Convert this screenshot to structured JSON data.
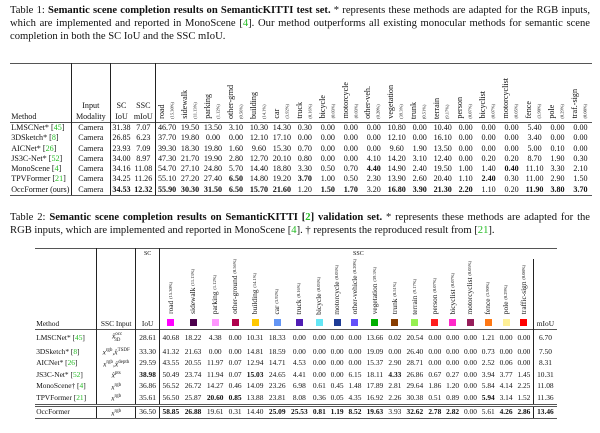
{
  "table1": {
    "caption_label": "Table 1: ",
    "caption_bold": "Semantic scene completion results on SemanticKITTI test set.",
    "caption_text_a": " * represents these methods are adapted for the RGB inputs, which are implemented and reported in MonoScene [",
    "caption_ref": "4",
    "caption_text_b": "]. Our method outperforms all existing monocular methods for semantic scene completion in both the SC IoU and the SSC mIoU.",
    "headers": {
      "method": "Method",
      "input": "Input Modality",
      "sc": "SC IoU",
      "ssc": "SSC mIoU"
    },
    "classes": [
      {
        "name": "road",
        "freq": "(15.30%)"
      },
      {
        "name": "sidewalk",
        "freq": "(11.13%)"
      },
      {
        "name": "parking",
        "freq": "(1.12%)"
      },
      {
        "name": "other-grnd",
        "freq": "(0.56%)"
      },
      {
        "name": "building",
        "freq": "(14.1%)"
      },
      {
        "name": "car",
        "freq": "(3.92%)"
      },
      {
        "name": "truck",
        "freq": "(0.16%)"
      },
      {
        "name": "bicycle",
        "freq": "(0.03%)"
      },
      {
        "name": "motorcycle",
        "freq": "(0.03%)"
      },
      {
        "name": "other-veh.",
        "freq": "(0.20%)"
      },
      {
        "name": "vegetation",
        "freq": "(39.3%)"
      },
      {
        "name": "trunk",
        "freq": "(0.51%)"
      },
      {
        "name": "terrain",
        "freq": "(9.17%)"
      },
      {
        "name": "person",
        "freq": "(0.07%)"
      },
      {
        "name": "bicyclist",
        "freq": "(0.07%)"
      },
      {
        "name": "motorcyclist",
        "freq": "(0.05%)"
      },
      {
        "name": "fence",
        "freq": "(3.90%)"
      },
      {
        "name": "pole",
        "freq": "(0.29%)"
      },
      {
        "name": "traf.-sign",
        "freq": "(0.08%)"
      }
    ],
    "rows": [
      {
        "method": "LMSCNet*",
        "ref": "45",
        "input": "Camera",
        "sc": "31.38",
        "ssc": "7.07",
        "values": [
          "46.70",
          "19.50",
          "13.50",
          "3.10",
          "10.30",
          "14.30",
          "0.30",
          "0.00",
          "0.00",
          "0.00",
          "10.80",
          "0.00",
          "10.40",
          "0.00",
          "0.00",
          "0.00",
          "5.40",
          "0.00",
          "0.00"
        ],
        "bold": []
      },
      {
        "method": "3DSketch*",
        "ref": "8",
        "input": "Camera",
        "sc": "26.85",
        "ssc": "6.23",
        "values": [
          "37.70",
          "19.80",
          "0.00",
          "0.00",
          "12.10",
          "17.10",
          "0.00",
          "0.00",
          "0.00",
          "0.00",
          "12.10",
          "0.00",
          "16.10",
          "0.00",
          "0.00",
          "0.00",
          "3.40",
          "0.00",
          "0.00"
        ],
        "bold": []
      },
      {
        "method": "AICNet*",
        "ref": "26",
        "input": "Camera",
        "sc": "23.93",
        "ssc": "7.09",
        "values": [
          "39.30",
          "18.30",
          "19.80",
          "1.60",
          "9.60",
          "15.30",
          "0.70",
          "0.00",
          "0.00",
          "0.00",
          "9.60",
          "1.90",
          "13.50",
          "0.00",
          "0.00",
          "0.00",
          "5.00",
          "0.10",
          "0.00"
        ],
        "bold": []
      },
      {
        "method": "JS3C-Net*",
        "ref": "52",
        "input": "Camera",
        "sc": "34.00",
        "ssc": "8.97",
        "values": [
          "47.30",
          "21.70",
          "19.90",
          "2.80",
          "12.70",
          "20.10",
          "0.80",
          "0.00",
          "0.00",
          "4.10",
          "14.20",
          "3.10",
          "12.40",
          "0.00",
          "0.20",
          "0.20",
          "8.70",
          "1.90",
          "0.30"
        ],
        "bold": []
      },
      {
        "method": "MonoScene",
        "ref": "4",
        "input": "Camera",
        "sc": "34.16",
        "ssc": "11.08",
        "values": [
          "54.70",
          "27.10",
          "24.80",
          "5.70",
          "14.40",
          "18.80",
          "3.30",
          "0.50",
          "0.70",
          "4.40",
          "14.90",
          "2.40",
          "19.50",
          "1.00",
          "1.40",
          "0.40",
          "11.10",
          "3.30",
          "2.10"
        ],
        "bold": [
          9,
          15
        ]
      },
      {
        "method": "TPVFormer",
        "ref": "21",
        "input": "Camera",
        "sc": "34.25",
        "ssc": "11.26",
        "values": [
          "55.10",
          "27.20",
          "27.40",
          "6.50",
          "14.80",
          "19.20",
          "3.70",
          "1.00",
          "0.50",
          "2.30",
          "13.90",
          "2.60",
          "20.40",
          "1.10",
          "2.40",
          "0.30",
          "11.00",
          "2.90",
          "1.50"
        ],
        "bold": [
          3,
          6,
          14
        ]
      },
      {
        "method": "OccFormer (ours)",
        "ref": "",
        "input": "Camera",
        "sc": "34.53",
        "ssc": "12.32",
        "sc_bold": true,
        "values": [
          "55.90",
          "30.30",
          "31.50",
          "6.50",
          "15.70",
          "21.60",
          "1.20",
          "1.50",
          "1.70",
          "3.20",
          "16.80",
          "3.90",
          "21.30",
          "2.20",
          "1.10",
          "0.20",
          "11.90",
          "3.80",
          "3.70"
        ],
        "bold": [
          0,
          1,
          2,
          3,
          4,
          5,
          7,
          8,
          10,
          11,
          12,
          13,
          16,
          17,
          18
        ]
      }
    ]
  },
  "table2": {
    "caption_label": "Table 2: ",
    "caption_bold": "Semantic scene completion results on SemanticKITTI [",
    "caption_bold_ref": "2",
    "caption_bold_b": "] validation set.",
    "caption_text_a": " * represents these methods are adapted for the RGB inputs, which are implemented and reported in MonoScene [",
    "caption_ref": "4",
    "caption_text_b": "]. † represents the reproduced result from [",
    "caption_ref2": "21",
    "caption_text_c": "].",
    "headers": {
      "method": "Method",
      "input": "SSC Input",
      "sc_group": "SC",
      "sc": "IoU",
      "ssc_group": "SSC",
      "miou": "mIoU"
    },
    "classes": [
      {
        "name": "road",
        "freq": "(15.30%)",
        "color": "#ff00ff"
      },
      {
        "name": "sidewalk",
        "freq": "(11.13%)",
        "color": "#4b004b"
      },
      {
        "name": "parking",
        "freq": "(1.12%)",
        "color": "#ff96ff"
      },
      {
        "name": "other-ground",
        "freq": "(0.56%)",
        "color": "#af004b"
      },
      {
        "name": "building",
        "freq": "(14.1%)",
        "color": "#ffc800"
      },
      {
        "name": "car",
        "freq": "(3.92%)",
        "color": "#6496f5"
      },
      {
        "name": "truck",
        "freq": "(0.16%)",
        "color": "#501eb4"
      },
      {
        "name": "bicycle",
        "freq": "(0.03%)",
        "color": "#64e6f5"
      },
      {
        "name": "motorcycle",
        "freq": "(0.03%)",
        "color": "#1e3c96"
      },
      {
        "name": "other-vehicle",
        "freq": "(0.20%)",
        "color": "#6450fa"
      },
      {
        "name": "vegetation",
        "freq": "(39.3%)",
        "color": "#00af00"
      },
      {
        "name": "trunk",
        "freq": "(0.51%)",
        "color": "#873c00"
      },
      {
        "name": "terrain",
        "freq": "(9.17%)",
        "color": "#96f050"
      },
      {
        "name": "person",
        "freq": "(0.07%)",
        "color": "#ff1e1e"
      },
      {
        "name": "bicyclist",
        "freq": "(0.07%)",
        "color": "#ff28c8"
      },
      {
        "name": "motorcyclist",
        "freq": "(0.05%)",
        "color": "#961e5a"
      },
      {
        "name": "fence",
        "freq": "(3.90%)",
        "color": "#ff7814"
      },
      {
        "name": "pole",
        "freq": "(0.29%)",
        "color": "#fff096"
      },
      {
        "name": "traffic-sign",
        "freq": "(0.08%)",
        "color": "#ff0000"
      }
    ],
    "rows": [
      {
        "method": "LMSCNet*",
        "ref": "45",
        "input": [
          {
            "base": "x̂",
            "sup": "occ",
            "sub": "3D"
          }
        ],
        "iou": "28.61",
        "miou": "6.70",
        "values": [
          "40.68",
          "18.22",
          "4.38",
          "0.00",
          "10.31",
          "18.33",
          "0.00",
          "0.00",
          "0.00",
          "0.00",
          "13.66",
          "0.02",
          "20.54",
          "0.00",
          "0.00",
          "0.00",
          "1.21",
          "0.00",
          "0.00"
        ],
        "bold": []
      },
      {
        "method": "3DSketch*",
        "ref": "8",
        "input": [
          {
            "base": "x",
            "sup": "rgb"
          },
          {
            "base": "x̂",
            "sup": "TSDF"
          }
        ],
        "iou": "33.30",
        "miou": "7.50",
        "values": [
          "41.32",
          "21.63",
          "0.00",
          "0.00",
          "14.81",
          "18.59",
          "0.00",
          "0.00",
          "0.00",
          "0.00",
          "19.09",
          "0.00",
          "26.40",
          "0.00",
          "0.00",
          "0.00",
          "0.73",
          "0.00",
          "0.00"
        ],
        "bold": []
      },
      {
        "method": "AICNet*",
        "ref": "26",
        "input": [
          {
            "base": "x",
            "sup": "rgb"
          },
          {
            "base": "x̂",
            "sup": "depth"
          }
        ],
        "iou": "29.59",
        "miou": "8.31",
        "values": [
          "43.55",
          "20.55",
          "11.97",
          "0.07",
          "12.94",
          "14.71",
          "4.53",
          "0.00",
          "0.00",
          "0.00",
          "15.37",
          "2.90",
          "28.71",
          "0.00",
          "0.00",
          "0.00",
          "2.52",
          "0.06",
          "0.00"
        ],
        "bold": []
      },
      {
        "method": "JS3C-Net*",
        "ref": "52",
        "input": [
          {
            "base": "x̂",
            "sup": "pts"
          }
        ],
        "iou": "38.98",
        "iou_bold": true,
        "miou": "10.31",
        "values": [
          "50.49",
          "23.74",
          "11.94",
          "0.07",
          "15.03",
          "24.65",
          "4.41",
          "0.00",
          "0.00",
          "6.15",
          "18.11",
          "4.33",
          "26.86",
          "0.67",
          "0.27",
          "0.00",
          "3.94",
          "3.77",
          "1.45"
        ],
        "bold": [
          4,
          11
        ]
      },
      {
        "method": "MonoScene†",
        "ref": "4",
        "input": [
          {
            "base": "x",
            "sup": "rgb"
          }
        ],
        "iou": "36.86",
        "miou": "11.08",
        "values": [
          "56.52",
          "26.72",
          "14.27",
          "0.46",
          "14.09",
          "23.26",
          "6.98",
          "0.61",
          "0.45",
          "1.48",
          "17.89",
          "2.81",
          "29.64",
          "1.86",
          "1.20",
          "0.00",
          "5.84",
          "4.14",
          "2.25"
        ],
        "bold": []
      },
      {
        "method": "TPVFormer",
        "ref": "21",
        "input": [
          {
            "base": "x",
            "sup": "rgb"
          }
        ],
        "iou": "35.61",
        "miou": "11.36",
        "values": [
          "56.50",
          "25.87",
          "20.60",
          "0.85",
          "13.88",
          "23.81",
          "8.08",
          "0.36",
          "0.05",
          "4.35",
          "16.92",
          "2.26",
          "30.38",
          "0.51",
          "0.89",
          "0.00",
          "5.94",
          "3.14",
          "1.52"
        ],
        "bold": [
          2,
          3,
          16
        ]
      },
      {
        "method": "OccFormer",
        "ref": "",
        "input": [
          {
            "base": "x",
            "sup": "rgb"
          }
        ],
        "iou": "36.50",
        "miou": "13.46",
        "miou_bold": true,
        "values": [
          "58.85",
          "26.88",
          "19.61",
          "0.31",
          "14.40",
          "25.09",
          "25.53",
          "0.81",
          "1.19",
          "8.52",
          "19.63",
          "3.93",
          "32.62",
          "2.78",
          "2.82",
          "0.00",
          "5.61",
          "4.26",
          "2.86"
        ],
        "bold": [
          0,
          1,
          5,
          6,
          7,
          8,
          9,
          10,
          12,
          13,
          14,
          17,
          18
        ]
      }
    ]
  }
}
